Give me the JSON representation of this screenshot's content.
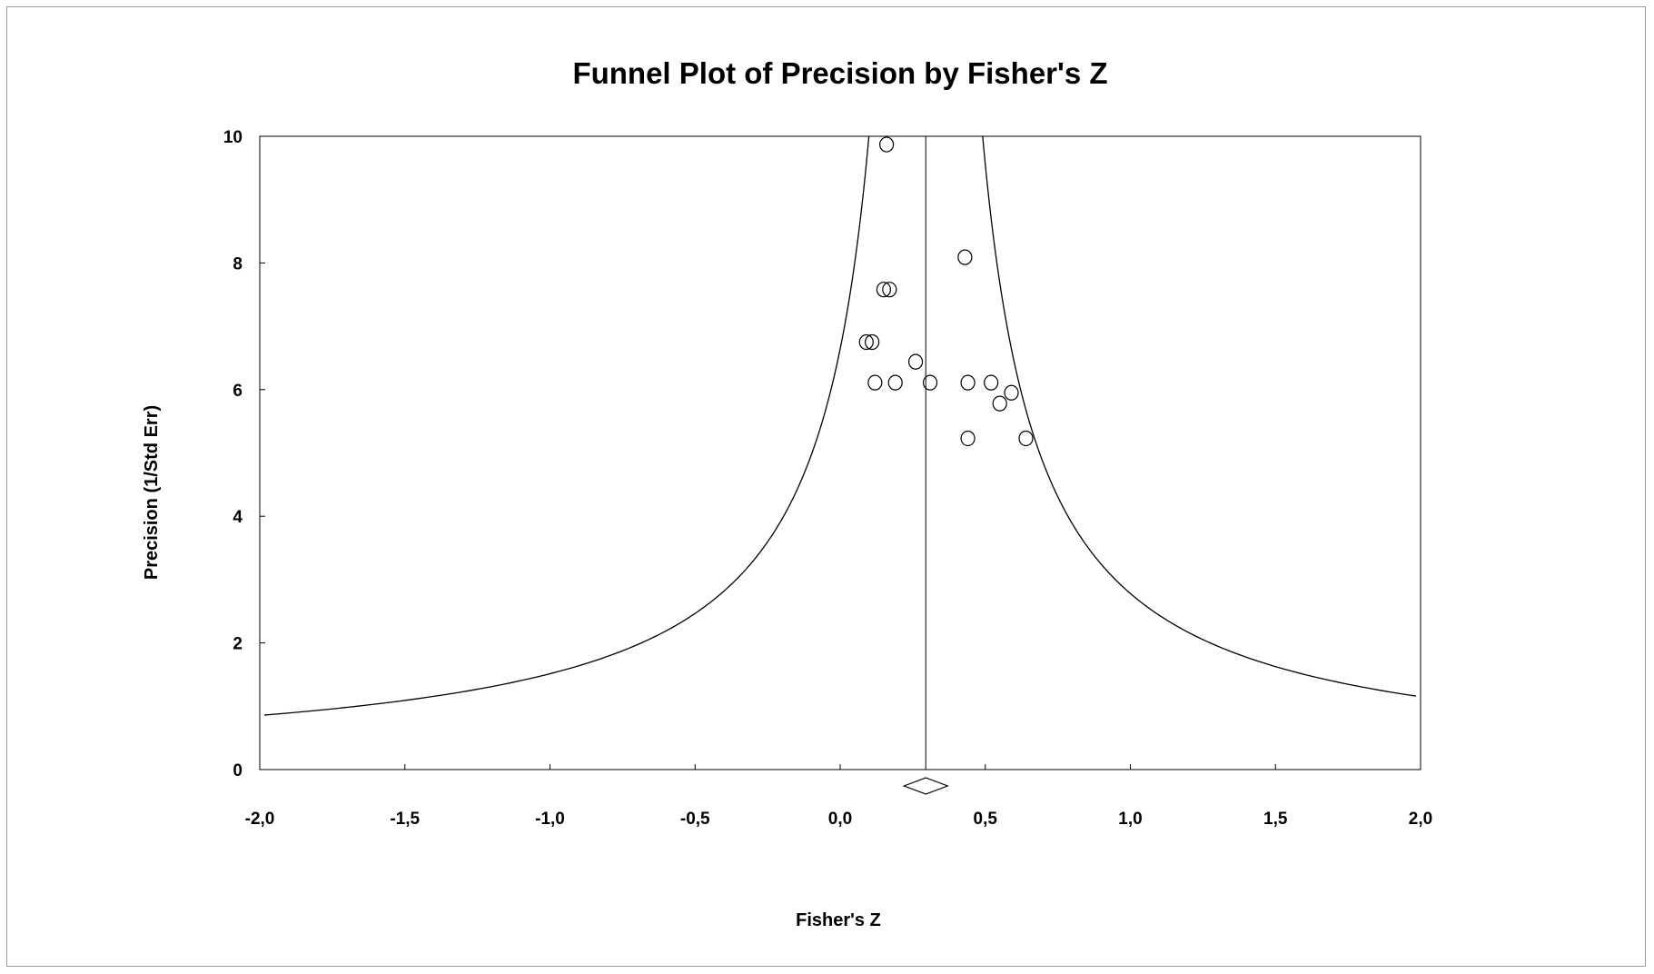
{
  "chart_data": {
    "type": "scatter",
    "title": "Funnel Plot of Precision by Fisher's Z",
    "xlabel": "Fisher's Z",
    "ylabel": "Precision (1/Std Err)",
    "xlim": [
      -2.0,
      2.0
    ],
    "ylim": [
      0,
      10
    ],
    "x_ticks": [
      -2.0,
      -1.5,
      -1.0,
      -0.5,
      0.0,
      0.5,
      1.0,
      1.5,
      2.0
    ],
    "x_tick_labels": [
      "-2,0",
      "-1,5",
      "-1,0",
      "-0,5",
      "0,0",
      "0,5",
      "1,0",
      "1,5",
      "2,0"
    ],
    "y_ticks": [
      0,
      2,
      4,
      6,
      8,
      10
    ],
    "y_tick_labels": [
      "0",
      "2",
      "4",
      "6",
      "8",
      "10"
    ],
    "grid": false,
    "pooled_estimate": 0.295,
    "funnel_limit_z": 1.96,
    "points": [
      {
        "x": 0.16,
        "y": 9.87
      },
      {
        "x": 0.43,
        "y": 8.09
      },
      {
        "x": 0.15,
        "y": 7.58
      },
      {
        "x": 0.17,
        "y": 7.58
      },
      {
        "x": 0.09,
        "y": 6.75
      },
      {
        "x": 0.11,
        "y": 6.75
      },
      {
        "x": 0.26,
        "y": 6.44
      },
      {
        "x": 0.12,
        "y": 6.11
      },
      {
        "x": 0.19,
        "y": 6.11
      },
      {
        "x": 0.31,
        "y": 6.11
      },
      {
        "x": 0.44,
        "y": 6.11
      },
      {
        "x": 0.52,
        "y": 6.11
      },
      {
        "x": 0.59,
        "y": 5.95
      },
      {
        "x": 0.55,
        "y": 5.78
      },
      {
        "x": 0.44,
        "y": 5.23
      },
      {
        "x": 0.64,
        "y": 5.23
      }
    ]
  }
}
